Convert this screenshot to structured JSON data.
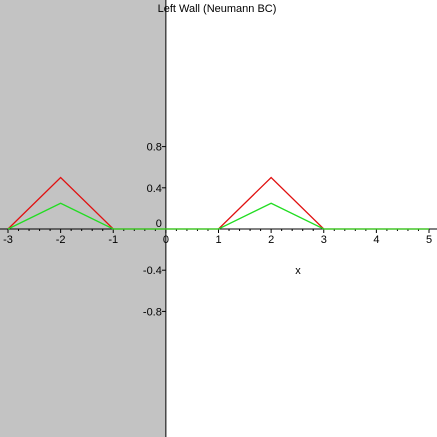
{
  "chart_data": {
    "type": "line",
    "title": "Left Wall (Neumann BC)",
    "xlabel": "x",
    "ylabel": "",
    "xlim": [
      -3,
      5
    ],
    "ylim": [
      -1.0,
      1.0
    ],
    "x_ticks": [
      -3,
      -2,
      -1,
      0,
      1,
      2,
      3,
      4,
      5
    ],
    "y_ticks": [
      0.8,
      0.4,
      0,
      -0.4,
      -0.8
    ],
    "x_tick_labels": [
      "-3",
      "-2",
      "-1",
      "0",
      "1",
      "2",
      "3",
      "4",
      "5"
    ],
    "y_tick_labels": [
      "0.8",
      "0.4",
      "0",
      "-0.4",
      "-0.8"
    ],
    "shaded_region": {
      "x_from": -3,
      "x_to": 0,
      "color": "#c3c3c3"
    },
    "wall": {
      "x": 0,
      "color": "#000000"
    },
    "series": [
      {
        "color": "#e01010",
        "x": [
          -3,
          -2,
          -1,
          1,
          2,
          3,
          5
        ],
        "y": [
          0,
          0.5,
          0,
          0,
          0.5,
          0,
          0
        ]
      },
      {
        "color": "#22dd22",
        "x": [
          -3,
          -2,
          -1,
          1,
          2,
          3,
          5
        ],
        "y": [
          0,
          0.25,
          0,
          0,
          0.25,
          0,
          0
        ]
      }
    ]
  }
}
